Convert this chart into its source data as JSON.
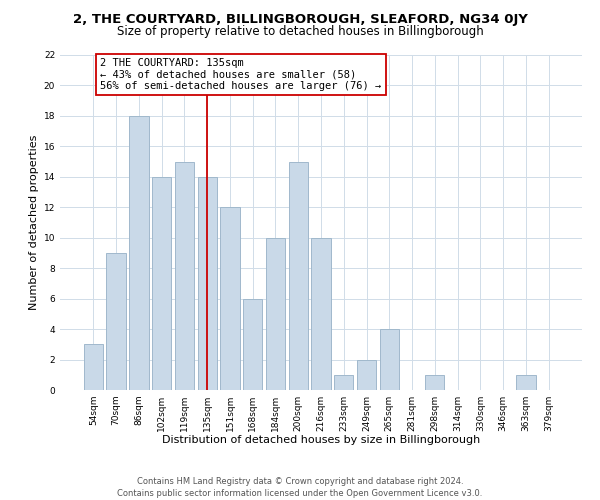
{
  "title": "2, THE COURTYARD, BILLINGBOROUGH, SLEAFORD, NG34 0JY",
  "subtitle": "Size of property relative to detached houses in Billingborough",
  "xlabel": "Distribution of detached houses by size in Billingborough",
  "ylabel": "Number of detached properties",
  "bin_labels": [
    "54sqm",
    "70sqm",
    "86sqm",
    "102sqm",
    "119sqm",
    "135sqm",
    "151sqm",
    "168sqm",
    "184sqm",
    "200sqm",
    "216sqm",
    "233sqm",
    "249sqm",
    "265sqm",
    "281sqm",
    "298sqm",
    "314sqm",
    "330sqm",
    "346sqm",
    "363sqm",
    "379sqm"
  ],
  "bar_values": [
    3,
    9,
    18,
    14,
    15,
    14,
    12,
    6,
    10,
    15,
    10,
    1,
    2,
    4,
    0,
    1,
    0,
    0,
    0,
    1,
    0
  ],
  "bar_color": "#c9d9e8",
  "bar_edge_color": "#a0b8cc",
  "vline_x_index": 5,
  "vline_color": "#cc0000",
  "annotation_line1": "2 THE COURTYARD: 135sqm",
  "annotation_line2": "← 43% of detached houses are smaller (58)",
  "annotation_line3": "56% of semi-detached houses are larger (76) →",
  "annotation_box_color": "#ffffff",
  "annotation_box_edge_color": "#cc0000",
  "ylim": [
    0,
    22
  ],
  "yticks": [
    0,
    2,
    4,
    6,
    8,
    10,
    12,
    14,
    16,
    18,
    20,
    22
  ],
  "footer_line1": "Contains HM Land Registry data © Crown copyright and database right 2024.",
  "footer_line2": "Contains public sector information licensed under the Open Government Licence v3.0.",
  "background_color": "#ffffff",
  "grid_color": "#d0dce8",
  "title_fontsize": 9.5,
  "subtitle_fontsize": 8.5,
  "axis_label_fontsize": 8,
  "tick_fontsize": 6.5,
  "annotation_fontsize": 7.5,
  "footer_fontsize": 6
}
